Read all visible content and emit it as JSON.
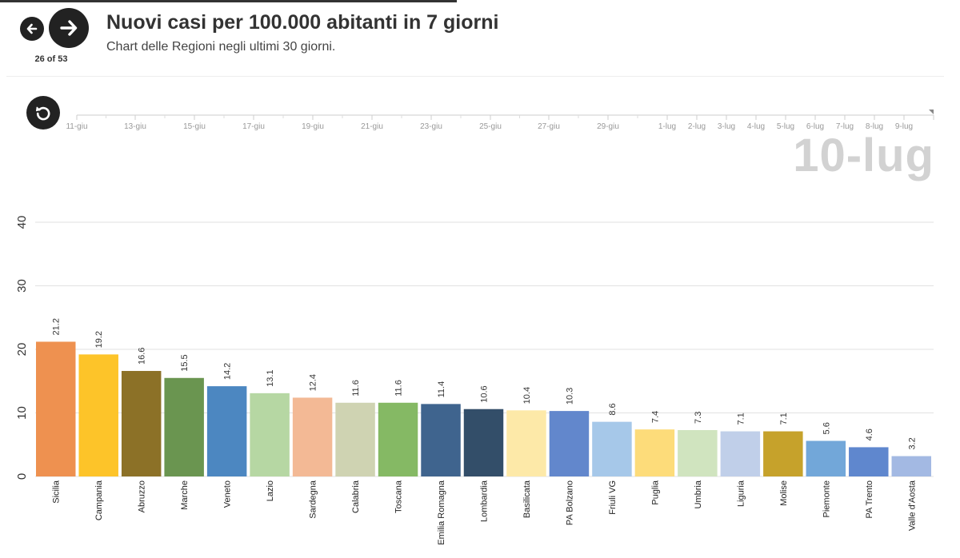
{
  "navigation": {
    "counter": "26 of 53",
    "prev_icon": "arrow-left-icon",
    "next_icon": "arrow-right-icon",
    "replay_icon": "replay-icon"
  },
  "header": {
    "title": "Nuovi casi per 100.000 abitanti in 7 giorni",
    "subtitle": "Chart delle Regioni negli ultimi 30 giorni."
  },
  "timeline": {
    "labels": [
      "11-giu",
      "13-giu",
      "15-giu",
      "17-giu",
      "19-giu",
      "21-giu",
      "23-giu",
      "25-giu",
      "27-giu",
      "29-giu",
      "1-lug",
      "2-lug",
      "3-lug",
      "4-lug",
      "5-lug",
      "6-lug",
      "7-lug",
      "8-lug",
      "9-lug"
    ],
    "current_date": "10-lug"
  },
  "chart_data": {
    "type": "bar",
    "title": "Nuovi casi per 100.000 abitanti in 7 giorni",
    "subtitle": "Chart delle Regioni negli ultimi 30 giorni.",
    "categories": [
      "Sicilia",
      "Campania",
      "Abruzzo",
      "Marche",
      "Veneto",
      "Lazio",
      "Sardegna",
      "Calabria",
      "Toscana",
      "Emilia Romagna",
      "Lombardia",
      "Basilicata",
      "PA Bolzano",
      "Friuli VG",
      "Puglia",
      "Umbria",
      "Liguria",
      "Molise",
      "Piemonte",
      "PA Trento",
      "Valle d'Aosta"
    ],
    "values": [
      21.2,
      19.2,
      16.6,
      15.5,
      14.2,
      13.1,
      12.4,
      11.6,
      11.6,
      11.4,
      10.6,
      10.4,
      10.3,
      8.6,
      7.4,
      7.3,
      7.1,
      7.1,
      5.6,
      4.6,
      3.2
    ],
    "value_labels": [
      "21.2",
      "19.2",
      "16.6",
      "15.5",
      "14.2",
      "13.1",
      "12.4",
      "11.6",
      "11.6",
      "11.4",
      "10.6",
      "10.4",
      "10.3",
      "8.6",
      "7.4",
      "7.3",
      "7.1",
      "7.1",
      "5.6",
      "4.6",
      "3.2"
    ],
    "colors": [
      "#ee9150",
      "#fdc429",
      "#8c7127",
      "#6a9550",
      "#4c87c1",
      "#b6d7a3",
      "#f3b995",
      "#cfd3b2",
      "#85b964",
      "#3f648e",
      "#334e69",
      "#fde9a8",
      "#6287cc",
      "#a6c8e9",
      "#fddc7a",
      "#d0e4bf",
      "#c0cfe9",
      "#c6a22b",
      "#72a7d9",
      "#5f87ce",
      "#a3b9e3"
    ],
    "y_ticks": [
      "0",
      "10",
      "20",
      "30",
      "40"
    ],
    "ylim": [
      0,
      40
    ],
    "grid": true,
    "xlabel": "",
    "ylabel": ""
  }
}
